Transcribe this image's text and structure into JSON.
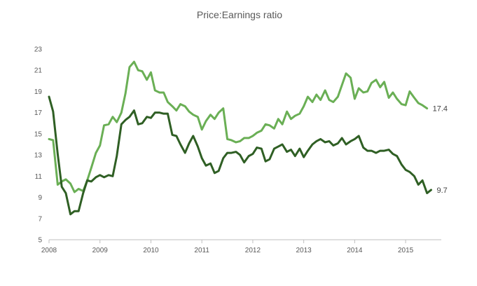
{
  "chart_data": {
    "type": "line",
    "title": "Price:Earnings ratio",
    "xlabel": "",
    "ylabel": "",
    "x_range": [
      2008.0,
      2015.7
    ],
    "ylim": [
      5,
      23
    ],
    "y_ticks": [
      5,
      7,
      9,
      11,
      13,
      15,
      17,
      19,
      21,
      23
    ],
    "x_ticks": [
      2008,
      2009,
      2010,
      2011,
      2012,
      2013,
      2014,
      2015
    ],
    "x_tick_labels": [
      "2008",
      "2009",
      "2010",
      "2011",
      "2012",
      "2013",
      "2014",
      "2015"
    ],
    "grid": false,
    "legend": "none",
    "series": [
      {
        "name": "Light green series",
        "color": "#6aaf55",
        "end_label": "17.4",
        "points": [
          [
            2008.0,
            14.5
          ],
          [
            2008.08,
            14.4
          ],
          [
            2008.17,
            10.2
          ],
          [
            2008.25,
            10.5
          ],
          [
            2008.33,
            10.7
          ],
          [
            2008.42,
            10.3
          ],
          [
            2008.5,
            9.5
          ],
          [
            2008.58,
            9.8
          ],
          [
            2008.67,
            9.6
          ],
          [
            2008.75,
            10.6
          ],
          [
            2008.83,
            11.8
          ],
          [
            2008.92,
            13.2
          ],
          [
            2009.0,
            13.9
          ],
          [
            2009.08,
            15.8
          ],
          [
            2009.17,
            15.9
          ],
          [
            2009.25,
            16.6
          ],
          [
            2009.33,
            16.1
          ],
          [
            2009.42,
            17.0
          ],
          [
            2009.5,
            18.8
          ],
          [
            2009.58,
            21.3
          ],
          [
            2009.67,
            21.8
          ],
          [
            2009.75,
            21.0
          ],
          [
            2009.83,
            20.9
          ],
          [
            2009.92,
            20.1
          ],
          [
            2010.0,
            20.8
          ],
          [
            2010.08,
            19.1
          ],
          [
            2010.17,
            18.9
          ],
          [
            2010.25,
            18.9
          ],
          [
            2010.33,
            18.0
          ],
          [
            2010.42,
            17.6
          ],
          [
            2010.5,
            17.2
          ],
          [
            2010.58,
            17.8
          ],
          [
            2010.67,
            17.6
          ],
          [
            2010.75,
            17.1
          ],
          [
            2010.83,
            16.8
          ],
          [
            2010.92,
            16.6
          ],
          [
            2011.0,
            15.4
          ],
          [
            2011.08,
            16.2
          ],
          [
            2011.17,
            16.8
          ],
          [
            2011.25,
            16.4
          ],
          [
            2011.33,
            17.0
          ],
          [
            2011.42,
            17.4
          ],
          [
            2011.5,
            14.5
          ],
          [
            2011.58,
            14.4
          ],
          [
            2011.67,
            14.2
          ],
          [
            2011.75,
            14.3
          ],
          [
            2011.83,
            14.6
          ],
          [
            2011.92,
            14.6
          ],
          [
            2012.0,
            14.8
          ],
          [
            2012.08,
            15.1
          ],
          [
            2012.17,
            15.3
          ],
          [
            2012.25,
            15.9
          ],
          [
            2012.33,
            15.8
          ],
          [
            2012.42,
            15.5
          ],
          [
            2012.5,
            16.4
          ],
          [
            2012.58,
            15.9
          ],
          [
            2012.67,
            17.1
          ],
          [
            2012.75,
            16.4
          ],
          [
            2012.83,
            16.7
          ],
          [
            2012.92,
            16.9
          ],
          [
            2013.0,
            17.6
          ],
          [
            2013.08,
            18.5
          ],
          [
            2013.17,
            18.0
          ],
          [
            2013.25,
            18.7
          ],
          [
            2013.33,
            18.2
          ],
          [
            2013.42,
            19.1
          ],
          [
            2013.5,
            18.2
          ],
          [
            2013.58,
            18.0
          ],
          [
            2013.67,
            18.5
          ],
          [
            2013.75,
            19.6
          ],
          [
            2013.83,
            20.7
          ],
          [
            2013.92,
            20.3
          ],
          [
            2014.0,
            18.3
          ],
          [
            2014.08,
            19.3
          ],
          [
            2014.17,
            18.9
          ],
          [
            2014.25,
            19.0
          ],
          [
            2014.33,
            19.8
          ],
          [
            2014.42,
            20.1
          ],
          [
            2014.5,
            19.4
          ],
          [
            2014.58,
            19.9
          ],
          [
            2014.67,
            18.4
          ],
          [
            2014.75,
            18.9
          ],
          [
            2014.83,
            18.3
          ],
          [
            2014.92,
            17.8
          ],
          [
            2015.0,
            17.7
          ],
          [
            2015.08,
            19.0
          ],
          [
            2015.17,
            18.4
          ],
          [
            2015.25,
            17.9
          ],
          [
            2015.33,
            17.7
          ],
          [
            2015.42,
            17.4
          ]
        ]
      },
      {
        "name": "Dark green series",
        "color": "#2f5f24",
        "end_label": "9.7",
        "points": [
          [
            2008.0,
            18.5
          ],
          [
            2008.08,
            17.1
          ],
          [
            2008.17,
            13.1
          ],
          [
            2008.25,
            10.0
          ],
          [
            2008.33,
            9.4
          ],
          [
            2008.42,
            7.4
          ],
          [
            2008.5,
            7.7
          ],
          [
            2008.58,
            7.7
          ],
          [
            2008.67,
            9.4
          ],
          [
            2008.75,
            10.6
          ],
          [
            2008.83,
            10.5
          ],
          [
            2008.92,
            10.9
          ],
          [
            2009.0,
            11.1
          ],
          [
            2009.08,
            10.9
          ],
          [
            2009.17,
            11.1
          ],
          [
            2009.25,
            11.0
          ],
          [
            2009.33,
            12.9
          ],
          [
            2009.42,
            15.9
          ],
          [
            2009.5,
            16.3
          ],
          [
            2009.58,
            16.6
          ],
          [
            2009.67,
            17.2
          ],
          [
            2009.75,
            15.9
          ],
          [
            2009.83,
            16.0
          ],
          [
            2009.92,
            16.6
          ],
          [
            2010.0,
            16.5
          ],
          [
            2010.08,
            17.0
          ],
          [
            2010.17,
            17.0
          ],
          [
            2010.25,
            16.9
          ],
          [
            2010.33,
            16.9
          ],
          [
            2010.42,
            14.9
          ],
          [
            2010.5,
            14.8
          ],
          [
            2010.58,
            14.0
          ],
          [
            2010.67,
            13.2
          ],
          [
            2010.75,
            14.1
          ],
          [
            2010.83,
            14.8
          ],
          [
            2010.92,
            13.8
          ],
          [
            2011.0,
            12.7
          ],
          [
            2011.08,
            12.0
          ],
          [
            2011.17,
            12.2
          ],
          [
            2011.25,
            11.3
          ],
          [
            2011.33,
            11.5
          ],
          [
            2011.42,
            12.7
          ],
          [
            2011.5,
            13.2
          ],
          [
            2011.58,
            13.2
          ],
          [
            2011.67,
            13.3
          ],
          [
            2011.75,
            13.0
          ],
          [
            2011.83,
            12.3
          ],
          [
            2011.92,
            12.9
          ],
          [
            2012.0,
            13.1
          ],
          [
            2012.08,
            13.7
          ],
          [
            2012.17,
            13.6
          ],
          [
            2012.25,
            12.4
          ],
          [
            2012.33,
            12.6
          ],
          [
            2012.42,
            13.6
          ],
          [
            2012.5,
            13.8
          ],
          [
            2012.58,
            14.0
          ],
          [
            2012.67,
            13.3
          ],
          [
            2012.75,
            13.5
          ],
          [
            2012.83,
            12.9
          ],
          [
            2012.92,
            13.6
          ],
          [
            2013.0,
            12.8
          ],
          [
            2013.08,
            13.4
          ],
          [
            2013.17,
            14.0
          ],
          [
            2013.25,
            14.3
          ],
          [
            2013.33,
            14.5
          ],
          [
            2013.42,
            14.2
          ],
          [
            2013.5,
            14.3
          ],
          [
            2013.58,
            13.9
          ],
          [
            2013.67,
            14.1
          ],
          [
            2013.75,
            14.6
          ],
          [
            2013.83,
            14.0
          ],
          [
            2013.92,
            14.3
          ],
          [
            2014.0,
            14.5
          ],
          [
            2014.08,
            14.8
          ],
          [
            2014.17,
            13.7
          ],
          [
            2014.25,
            13.4
          ],
          [
            2014.33,
            13.4
          ],
          [
            2014.42,
            13.2
          ],
          [
            2014.5,
            13.4
          ],
          [
            2014.58,
            13.4
          ],
          [
            2014.67,
            13.5
          ],
          [
            2014.75,
            13.1
          ],
          [
            2014.83,
            12.9
          ],
          [
            2014.92,
            12.1
          ],
          [
            2015.0,
            11.6
          ],
          [
            2015.08,
            11.4
          ],
          [
            2015.17,
            11.0
          ],
          [
            2015.25,
            10.2
          ],
          [
            2015.33,
            10.6
          ],
          [
            2015.42,
            9.4
          ],
          [
            2015.5,
            9.7
          ]
        ]
      }
    ]
  }
}
